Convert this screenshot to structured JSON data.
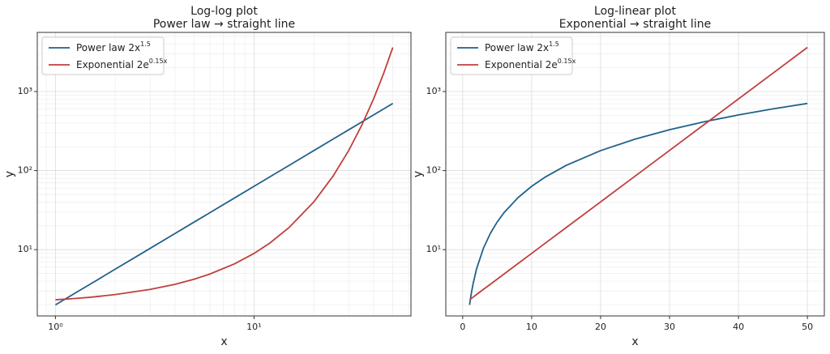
{
  "chart_data": [
    {
      "type": "line",
      "title": "Log-log plot",
      "subtitle": "Power law → straight line",
      "xlabel": "x",
      "ylabel": "y",
      "xscale": "log",
      "yscale": "log",
      "grid": true,
      "legend": "upper left",
      "x": [
        1,
        1.25,
        1.5,
        2,
        3,
        4,
        5,
        6,
        8,
        10,
        12,
        15,
        20,
        25,
        30,
        35,
        40,
        45,
        50
      ],
      "series": [
        {
          "name": "Power law 2x",
          "name_sup": "1.5",
          "color": "#21618c",
          "values": [
            2,
            2.8,
            3.67,
            5.66,
            10.39,
            16,
            22.36,
            29.39,
            45.25,
            63.25,
            83.14,
            116.19,
            178.89,
            250,
            328.63,
            414.13,
            505.96,
            603.74,
            707.11
          ]
        },
        {
          "name": "Exponential 2e",
          "name_sup": "0.15x",
          "color": "#c0403c",
          "values": [
            2.32,
            2.41,
            2.5,
            2.7,
            3.14,
            3.64,
            4.23,
            4.92,
            6.64,
            8.96,
            12.1,
            18.98,
            40.17,
            85.04,
            180.03,
            381.13,
            806.86,
            1708.1,
            3616.1
          ]
        }
      ],
      "xlim": [
        0.81,
        61.7
      ],
      "ylim": [
        1.45,
        5600
      ],
      "xticks": [
        {
          "value": 1,
          "label": "10⁰"
        },
        {
          "value": 10,
          "label": "10¹"
        }
      ],
      "yticks": [
        {
          "value": 10,
          "label": "10¹"
        },
        {
          "value": 100,
          "label": "10²"
        },
        {
          "value": 1000,
          "label": "10³"
        }
      ],
      "xminor": [
        0.9,
        2,
        3,
        4,
        5,
        6,
        7,
        8,
        9,
        20,
        30,
        40,
        50,
        60
      ],
      "yminor": [
        2,
        3,
        4,
        5,
        6,
        7,
        8,
        9,
        20,
        30,
        40,
        50,
        60,
        70,
        80,
        90,
        200,
        300,
        400,
        500,
        600,
        700,
        800,
        900,
        2000,
        3000,
        4000,
        5000
      ]
    },
    {
      "type": "line",
      "title": "Log-linear plot",
      "subtitle": "Exponential → straight line",
      "xlabel": "x",
      "ylabel": "y",
      "xscale": "linear",
      "yscale": "log",
      "grid": true,
      "legend": "upper left",
      "x": [
        1,
        1.25,
        1.5,
        2,
        3,
        4,
        5,
        6,
        8,
        10,
        12,
        15,
        20,
        25,
        30,
        35,
        40,
        45,
        50
      ],
      "series": [
        {
          "name": "Power law 2x",
          "name_sup": "1.5",
          "color": "#21618c",
          "values": [
            2,
            2.8,
            3.67,
            5.66,
            10.39,
            16,
            22.36,
            29.39,
            45.25,
            63.25,
            83.14,
            116.19,
            178.89,
            250,
            328.63,
            414.13,
            505.96,
            603.74,
            707.11
          ]
        },
        {
          "name": "Exponential 2e",
          "name_sup": "0.15x",
          "color": "#c0403c",
          "values": [
            2.32,
            2.41,
            2.5,
            2.7,
            3.14,
            3.64,
            4.23,
            4.92,
            6.64,
            8.96,
            12.1,
            18.98,
            40.17,
            85.04,
            180.03,
            381.13,
            806.86,
            1708.1,
            3616.1
          ]
        }
      ],
      "xlim": [
        -2.45,
        52.45
      ],
      "ylim": [
        1.45,
        5600
      ],
      "xticks": [
        0,
        10,
        20,
        30,
        40,
        50
      ],
      "yticks": [
        {
          "value": 10,
          "label": "10¹"
        },
        {
          "value": 100,
          "label": "10²"
        },
        {
          "value": 1000,
          "label": "10³"
        }
      ],
      "yminor": [
        2,
        3,
        4,
        5,
        6,
        7,
        8,
        9,
        20,
        30,
        40,
        50,
        60,
        70,
        80,
        90,
        200,
        300,
        400,
        500,
        600,
        700,
        800,
        900,
        2000,
        3000,
        4000,
        5000
      ]
    }
  ]
}
